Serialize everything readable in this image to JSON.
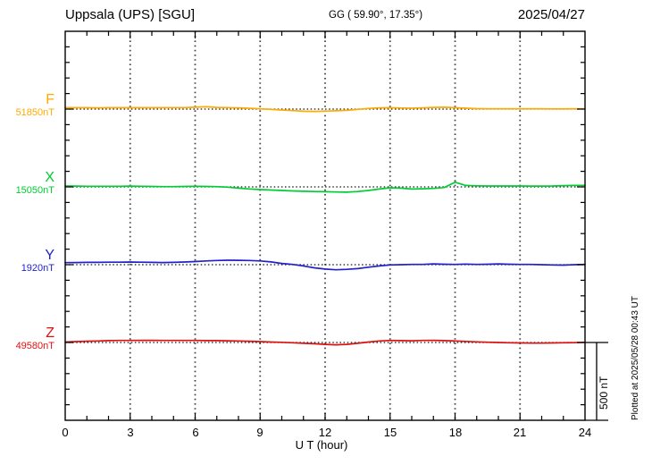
{
  "header": {
    "station_title": "Uppsala (UPS)  [SGU]",
    "coords": "GG ( 59.90°,  17.35°)",
    "date": "2025/04/27"
  },
  "axis": {
    "x_tick_labels": [
      "0",
      "3",
      "6",
      "9",
      "12",
      "15",
      "18",
      "21",
      "24"
    ],
    "x_title": "U T (hour)"
  },
  "scale_bar": {
    "label": "500 nT"
  },
  "footer": {
    "plotted_at": "Plotted at 2025/05/28 00:43 UT"
  },
  "chart_data": {
    "type": "line",
    "title": "Uppsala (UPS) [SGU] magnetogram",
    "date": "2025/04/27",
    "xlabel": "U T (hour)",
    "xlim": [
      0,
      24
    ],
    "x_major_ticks": [
      0,
      3,
      6,
      9,
      12,
      15,
      18,
      21,
      24
    ],
    "grid": "dotted vertical gridlines every 3 hours; dotted horizontal baseline per component",
    "nT_per_division": 100,
    "divisions": 25,
    "scale_bar_nT": 500,
    "x_hours": [
      0,
      0.5,
      1,
      1.5,
      2,
      2.5,
      3,
      3.5,
      4,
      4.5,
      5,
      5.5,
      6,
      6.5,
      7,
      7.5,
      8,
      8.5,
      9,
      9.5,
      10,
      10.5,
      11,
      11.5,
      12,
      12.5,
      13,
      13.5,
      14,
      14.5,
      15,
      15.5,
      16,
      16.5,
      17,
      17.5,
      18,
      18.5,
      19,
      19.5,
      20,
      20.5,
      21,
      21.5,
      22,
      22.5,
      23,
      23.5,
      24
    ],
    "series": [
      {
        "name": "F",
        "color": "#FFAA00",
        "baseline_nT": 51850,
        "baseline_label": "51850nT",
        "baseline_division": 5,
        "deviation_nT": [
          9,
          9,
          9,
          8,
          9,
          9,
          9,
          9,
          9,
          10,
          10,
          10,
          12,
          15,
          11,
          10,
          8,
          5,
          2,
          -2,
          -6,
          -10,
          -14,
          -15,
          -13,
          -11,
          -8,
          -2,
          4,
          8,
          9,
          7,
          6,
          8,
          11,
          12,
          9,
          6,
          3,
          2,
          2,
          2,
          2,
          2,
          2,
          1,
          1,
          2,
          2
        ]
      },
      {
        "name": "X",
        "color": "#00CC33",
        "baseline_nT": 15050,
        "baseline_label": "15050nT",
        "baseline_division": 10,
        "deviation_nT": [
          6,
          5,
          4,
          4,
          4,
          4,
          5,
          4,
          3,
          2,
          2,
          3,
          4,
          3,
          2,
          -2,
          -8,
          -13,
          -17,
          -20,
          -23,
          -26,
          -28,
          -30,
          -31,
          -33,
          -34,
          -30,
          -23,
          -14,
          -6,
          -8,
          -14,
          -12,
          -10,
          -4,
          30,
          9,
          7,
          6,
          6,
          6,
          6,
          5,
          5,
          6,
          8,
          9,
          10
        ]
      },
      {
        "name": "Y",
        "color": "#2222CC",
        "baseline_nT": 1920,
        "baseline_label": "1920nT",
        "baseline_division": 15,
        "deviation_nT": [
          13,
          14,
          15,
          15,
          16,
          16,
          17,
          16,
          15,
          14,
          15,
          17,
          20,
          24,
          27,
          29,
          28,
          27,
          24,
          18,
          8,
          2,
          -8,
          -20,
          -28,
          -33,
          -30,
          -25,
          -16,
          -8,
          -2,
          0,
          2,
          2,
          5,
          3,
          2,
          4,
          2,
          3,
          5,
          3,
          2,
          2,
          0,
          -2,
          -3,
          0,
          2
        ]
      },
      {
        "name": "Z",
        "color": "#DD1111",
        "baseline_nT": 49580,
        "baseline_label": "49580nT",
        "baseline_division": 20,
        "deviation_nT": [
          3,
          6,
          8,
          10,
          12,
          13,
          13,
          14,
          14,
          13,
          13,
          13,
          13,
          12,
          12,
          11,
          10,
          8,
          6,
          3,
          1,
          -2,
          -5,
          -8,
          -12,
          -15,
          -12,
          -5,
          3,
          10,
          13,
          12,
          11,
          13,
          14,
          12,
          10,
          7,
          4,
          2,
          0,
          -2,
          -3,
          -4,
          -4,
          -3,
          -2,
          -1,
          1
        ]
      }
    ]
  }
}
